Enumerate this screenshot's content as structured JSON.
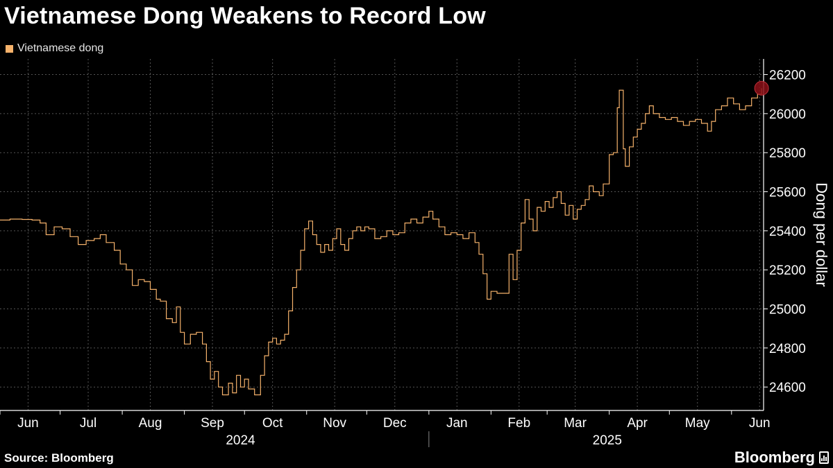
{
  "header": {
    "title": "Vietnamese Dong Weakens to Record Low"
  },
  "footer": {
    "source": "Source: Bloomberg",
    "brand": "Bloomberg"
  },
  "colors": {
    "background": "#000000",
    "line": "#f6b26b",
    "grid": "#555555",
    "marker": "#8b0f17",
    "text": "#ffffff"
  },
  "chart_data": {
    "type": "line",
    "title": "Vietnamese Dong Weakens to Record Low",
    "ylabel": "Dong per dollar",
    "xlabel": "",
    "ylim": [
      24480,
      26280
    ],
    "y_ticks": [
      24600,
      24800,
      25000,
      25200,
      25400,
      25600,
      25800,
      26000,
      26200
    ],
    "x_range": [
      "2024-06-01",
      "2025-06-17"
    ],
    "x_ticks": [
      {
        "date": "2024-06-15",
        "label": "Jun"
      },
      {
        "date": "2024-07-15",
        "label": "Jul"
      },
      {
        "date": "2024-08-15",
        "label": "Aug"
      },
      {
        "date": "2024-09-15",
        "label": "Sep"
      },
      {
        "date": "2024-10-15",
        "label": "Oct"
      },
      {
        "date": "2024-11-15",
        "label": "Nov"
      },
      {
        "date": "2024-12-15",
        "label": "Dec"
      },
      {
        "date": "2025-01-15",
        "label": "Jan"
      },
      {
        "date": "2025-02-15",
        "label": "Feb"
      },
      {
        "date": "2025-03-15",
        "label": "Mar"
      },
      {
        "date": "2025-04-15",
        "label": "Apr"
      },
      {
        "date": "2025-05-15",
        "label": "May"
      },
      {
        "date": "2025-06-15",
        "label": "Jun"
      }
    ],
    "year_labels": [
      {
        "date": "2024-09-29",
        "label": "2024"
      },
      {
        "date": "2025-03-31",
        "label": "2025"
      }
    ],
    "year_divider_date": "2025-01-01",
    "legend_position": "top-left",
    "grid": true,
    "series": [
      {
        "name": "Vietnamese dong",
        "color": "#f6b26b",
        "step": true,
        "points": [
          [
            "2024-06-01",
            25455
          ],
          [
            "2024-06-06",
            25460
          ],
          [
            "2024-06-12",
            25458
          ],
          [
            "2024-06-17",
            25455
          ],
          [
            "2024-06-21",
            25440
          ],
          [
            "2024-06-24",
            25380
          ],
          [
            "2024-06-28",
            25420
          ],
          [
            "2024-07-02",
            25410
          ],
          [
            "2024-07-06",
            25370
          ],
          [
            "2024-07-10",
            25330
          ],
          [
            "2024-07-14",
            25350
          ],
          [
            "2024-07-18",
            25360
          ],
          [
            "2024-07-21",
            25380
          ],
          [
            "2024-07-24",
            25340
          ],
          [
            "2024-07-28",
            25300
          ],
          [
            "2024-07-31",
            25230
          ],
          [
            "2024-08-03",
            25200
          ],
          [
            "2024-08-06",
            25120
          ],
          [
            "2024-08-09",
            25150
          ],
          [
            "2024-08-12",
            25140
          ],
          [
            "2024-08-15",
            25100
          ],
          [
            "2024-08-18",
            25050
          ],
          [
            "2024-08-20",
            25040
          ],
          [
            "2024-08-23",
            24950
          ],
          [
            "2024-08-26",
            24930
          ],
          [
            "2024-08-28",
            25010
          ],
          [
            "2024-08-30",
            24880
          ],
          [
            "2024-09-01",
            24820
          ],
          [
            "2024-09-04",
            24870
          ],
          [
            "2024-09-07",
            24880
          ],
          [
            "2024-09-10",
            24820
          ],
          [
            "2024-09-12",
            24730
          ],
          [
            "2024-09-14",
            24640
          ],
          [
            "2024-09-16",
            24680
          ],
          [
            "2024-09-18",
            24600
          ],
          [
            "2024-09-20",
            24560
          ],
          [
            "2024-09-23",
            24620
          ],
          [
            "2024-09-25",
            24570
          ],
          [
            "2024-09-27",
            24660
          ],
          [
            "2024-09-29",
            24600
          ],
          [
            "2024-10-01",
            24640
          ],
          [
            "2024-10-03",
            24590
          ],
          [
            "2024-10-06",
            24560
          ],
          [
            "2024-10-09",
            24660
          ],
          [
            "2024-10-11",
            24760
          ],
          [
            "2024-10-13",
            24830
          ],
          [
            "2024-10-15",
            24850
          ],
          [
            "2024-10-17",
            24820
          ],
          [
            "2024-10-19",
            24840
          ],
          [
            "2024-10-21",
            24870
          ],
          [
            "2024-10-23",
            24990
          ],
          [
            "2024-10-25",
            25110
          ],
          [
            "2024-10-27",
            25200
          ],
          [
            "2024-10-29",
            25300
          ],
          [
            "2024-10-31",
            25410
          ],
          [
            "2024-11-02",
            25450
          ],
          [
            "2024-11-04",
            25380
          ],
          [
            "2024-11-06",
            25330
          ],
          [
            "2024-11-08",
            25290
          ],
          [
            "2024-11-10",
            25330
          ],
          [
            "2024-11-12",
            25300
          ],
          [
            "2024-11-14",
            25360
          ],
          [
            "2024-11-16",
            25410
          ],
          [
            "2024-11-18",
            25330
          ],
          [
            "2024-11-20",
            25300
          ],
          [
            "2024-11-22",
            25360
          ],
          [
            "2024-11-24",
            25400
          ],
          [
            "2024-11-26",
            25420
          ],
          [
            "2024-11-28",
            25400
          ],
          [
            "2024-11-30",
            25420
          ],
          [
            "2024-12-02",
            25410
          ],
          [
            "2024-12-05",
            25360
          ],
          [
            "2024-12-08",
            25370
          ],
          [
            "2024-12-11",
            25400
          ],
          [
            "2024-12-14",
            25380
          ],
          [
            "2024-12-17",
            25390
          ],
          [
            "2024-12-20",
            25440
          ],
          [
            "2024-12-23",
            25460
          ],
          [
            "2024-12-26",
            25440
          ],
          [
            "2024-12-29",
            25470
          ],
          [
            "2025-01-01",
            25500
          ],
          [
            "2025-01-03",
            25460
          ],
          [
            "2025-01-06",
            25420
          ],
          [
            "2025-01-09",
            25380
          ],
          [
            "2025-01-12",
            25390
          ],
          [
            "2025-01-15",
            25380
          ],
          [
            "2025-01-18",
            25360
          ],
          [
            "2025-01-21",
            25390
          ],
          [
            "2025-01-24",
            25340
          ],
          [
            "2025-01-26",
            25280
          ],
          [
            "2025-01-28",
            25180
          ],
          [
            "2025-01-30",
            25050
          ],
          [
            "2025-02-01",
            25090
          ],
          [
            "2025-02-04",
            25080
          ],
          [
            "2025-02-07",
            25080
          ],
          [
            "2025-02-10",
            25280
          ],
          [
            "2025-02-12",
            25150
          ],
          [
            "2025-02-14",
            25300
          ],
          [
            "2025-02-16",
            25440
          ],
          [
            "2025-02-18",
            25560
          ],
          [
            "2025-02-20",
            25460
          ],
          [
            "2025-02-22",
            25400
          ],
          [
            "2025-02-24",
            25520
          ],
          [
            "2025-02-26",
            25500
          ],
          [
            "2025-02-28",
            25550
          ],
          [
            "2025-03-02",
            25520
          ],
          [
            "2025-03-04",
            25570
          ],
          [
            "2025-03-06",
            25600
          ],
          [
            "2025-03-08",
            25540
          ],
          [
            "2025-03-10",
            25480
          ],
          [
            "2025-03-12",
            25530
          ],
          [
            "2025-03-14",
            25460
          ],
          [
            "2025-03-16",
            25510
          ],
          [
            "2025-03-18",
            25530
          ],
          [
            "2025-03-20",
            25560
          ],
          [
            "2025-03-22",
            25630
          ],
          [
            "2025-03-24",
            25600
          ],
          [
            "2025-03-27",
            25580
          ],
          [
            "2025-03-29",
            25640
          ],
          [
            "2025-04-01",
            25790
          ],
          [
            "2025-04-03",
            25800
          ],
          [
            "2025-04-05",
            26030
          ],
          [
            "2025-04-06",
            26120
          ],
          [
            "2025-04-08",
            25820
          ],
          [
            "2025-04-09",
            25730
          ],
          [
            "2025-04-11",
            25830
          ],
          [
            "2025-04-13",
            25880
          ],
          [
            "2025-04-15",
            25920
          ],
          [
            "2025-04-17",
            25950
          ],
          [
            "2025-04-19",
            26000
          ],
          [
            "2025-04-21",
            26040
          ],
          [
            "2025-04-23",
            26000
          ],
          [
            "2025-04-26",
            25980
          ],
          [
            "2025-04-29",
            25970
          ],
          [
            "2025-05-02",
            25980
          ],
          [
            "2025-05-05",
            25960
          ],
          [
            "2025-05-08",
            25940
          ],
          [
            "2025-05-11",
            25960
          ],
          [
            "2025-05-14",
            25970
          ],
          [
            "2025-05-17",
            25950
          ],
          [
            "2025-05-20",
            25910
          ],
          [
            "2025-05-22",
            25960
          ],
          [
            "2025-05-24",
            26020
          ],
          [
            "2025-05-27",
            26040
          ],
          [
            "2025-05-30",
            26080
          ],
          [
            "2025-06-02",
            26050
          ],
          [
            "2025-06-05",
            26020
          ],
          [
            "2025-06-08",
            26040
          ],
          [
            "2025-06-11",
            26080
          ],
          [
            "2025-06-14",
            26100
          ],
          [
            "2025-06-16",
            26130
          ]
        ]
      }
    ],
    "highlight_point": {
      "date": "2025-06-16",
      "value": 26130
    }
  }
}
